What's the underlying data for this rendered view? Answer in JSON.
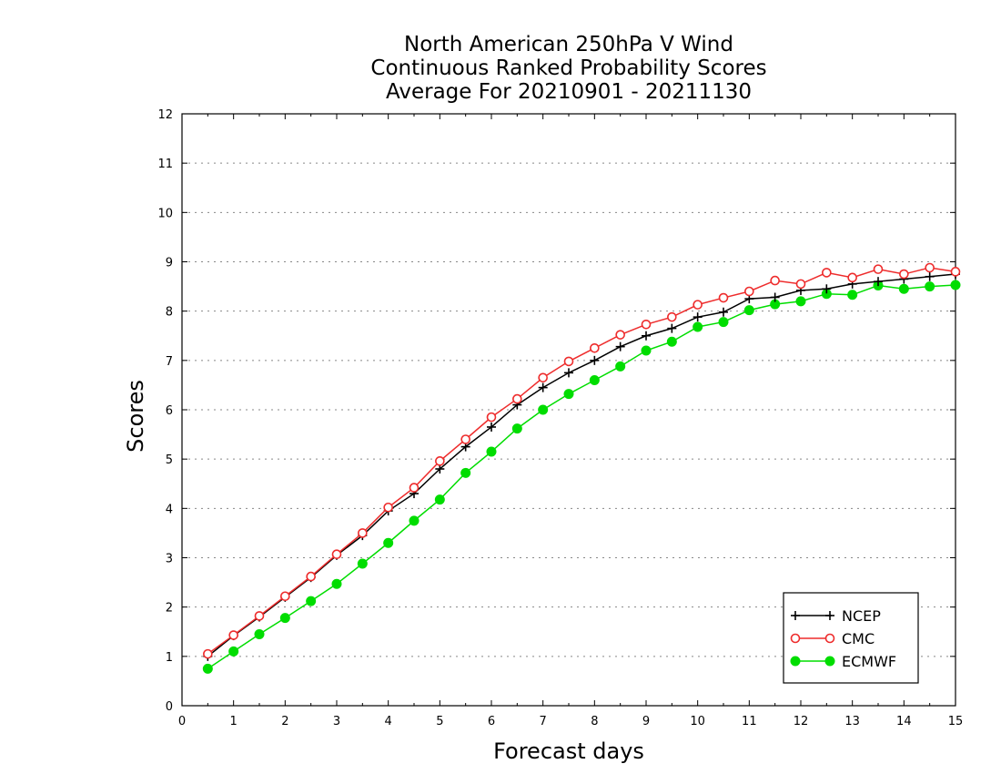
{
  "chart_data": {
    "type": "line",
    "title": [
      "North American 250hPa V Wind",
      "Continuous Ranked Probability Scores",
      "Average For 20210901 - 20211130"
    ],
    "xlabel": "Forecast days",
    "ylabel": "Scores",
    "xlim": [
      0,
      15
    ],
    "ylim": [
      0,
      12
    ],
    "xticks": [
      "0",
      "1",
      "2",
      "3",
      "4",
      "5",
      "6",
      "7",
      "8",
      "9",
      "10",
      "11",
      "12",
      "13",
      "14",
      "15"
    ],
    "yticks": [
      "0",
      "1",
      "2",
      "3",
      "4",
      "5",
      "6",
      "7",
      "8",
      "9",
      "10",
      "11",
      "12"
    ],
    "grid": "horizontal dotted",
    "legend_position": "bottom-right",
    "x": [
      0.5,
      1,
      1.5,
      2,
      2.5,
      3,
      3.5,
      4,
      4.5,
      5,
      5.5,
      6,
      6.5,
      7,
      7.5,
      8,
      8.5,
      9,
      9.5,
      10,
      10.5,
      11,
      11.5,
      12,
      12.5,
      13,
      13.5,
      14,
      14.5,
      15
    ],
    "series": [
      {
        "name": "NCEP",
        "color": "#000000",
        "marker": "plus",
        "values": [
          1.0,
          1.42,
          1.8,
          2.2,
          2.6,
          3.05,
          3.45,
          3.95,
          4.3,
          4.8,
          5.25,
          5.65,
          6.1,
          6.45,
          6.75,
          7.0,
          7.28,
          7.5,
          7.65,
          7.88,
          7.98,
          8.25,
          8.28,
          8.42,
          8.45,
          8.55,
          8.6,
          8.65,
          8.7,
          8.75
        ]
      },
      {
        "name": "CMC",
        "color": "#ee2c2c",
        "marker": "open-circle",
        "values": [
          1.05,
          1.43,
          1.82,
          2.22,
          2.62,
          3.07,
          3.5,
          4.02,
          4.42,
          4.96,
          5.4,
          5.85,
          6.22,
          6.65,
          6.98,
          7.25,
          7.52,
          7.73,
          7.88,
          8.13,
          8.27,
          8.4,
          8.62,
          8.55,
          8.78,
          8.68,
          8.85,
          8.75,
          8.88,
          8.8
        ]
      },
      {
        "name": "ECMWF",
        "color": "#00dd00",
        "marker": "filled-circle",
        "values": [
          0.75,
          1.1,
          1.45,
          1.78,
          2.12,
          2.47,
          2.88,
          3.3,
          3.75,
          4.18,
          4.72,
          5.15,
          5.62,
          6.0,
          6.32,
          6.6,
          6.88,
          7.2,
          7.38,
          7.68,
          7.78,
          8.02,
          8.14,
          8.2,
          8.35,
          8.33,
          8.52,
          8.45,
          8.5,
          8.53
        ]
      }
    ]
  }
}
